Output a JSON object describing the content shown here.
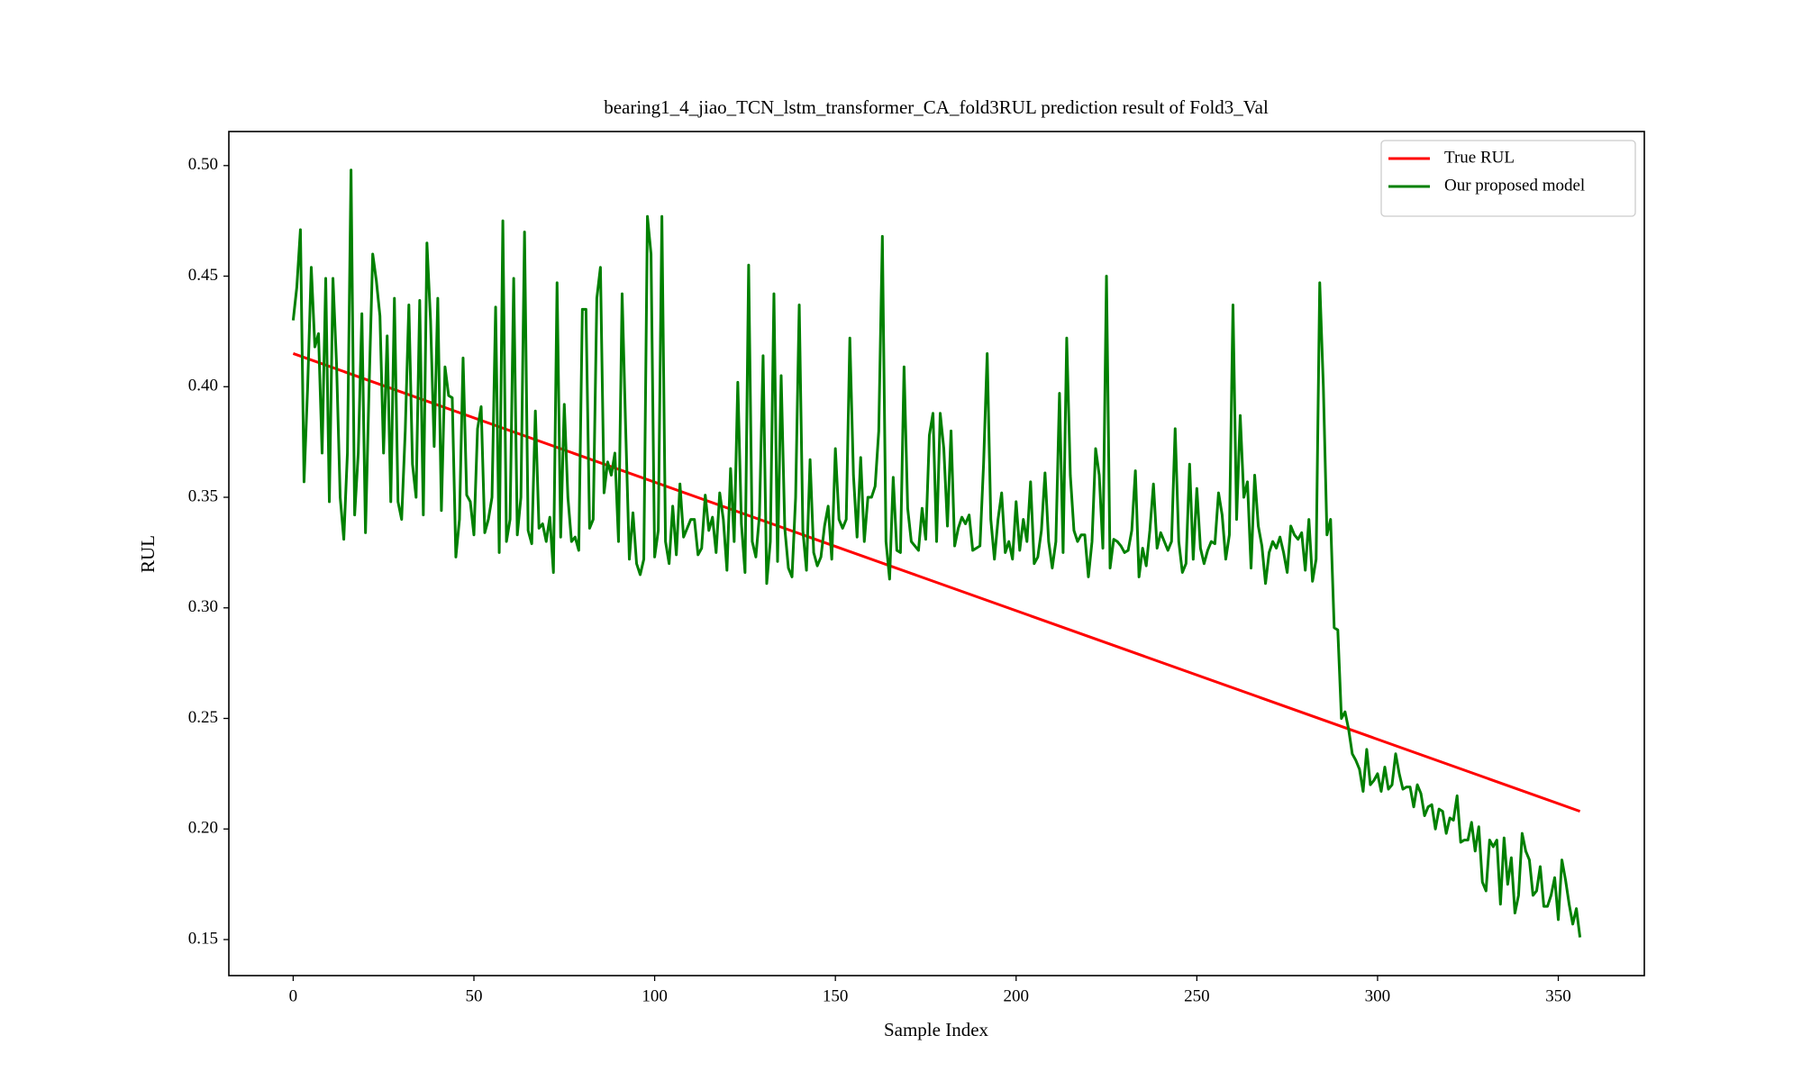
{
  "chart_data": {
    "type": "line",
    "title": "bearing1_4_jiao_TCN_lstm_transformer_CA_fold3RUL prediction result of Fold3_Val",
    "x_label": "Sample Index",
    "y_label": "RUL",
    "x": [
      0,
      1,
      2,
      3,
      4,
      5,
      6,
      7,
      8,
      9,
      10,
      11,
      12,
      13,
      14,
      15,
      16,
      17,
      18,
      19,
      20,
      21,
      22,
      23,
      24,
      25,
      26,
      27,
      28,
      29,
      30,
      31,
      32,
      33,
      34,
      35,
      36,
      37,
      38,
      39,
      40,
      41,
      42,
      43,
      44,
      45,
      46,
      47,
      48,
      49,
      50,
      51,
      52,
      53,
      54,
      55,
      56,
      57,
      58,
      59,
      60,
      61,
      62,
      63,
      64,
      65,
      66,
      67,
      68,
      69,
      70,
      71,
      72,
      73,
      74,
      75,
      76,
      77,
      78,
      79,
      80,
      81,
      82,
      83,
      84,
      85,
      86,
      87,
      88,
      89,
      90,
      91,
      92,
      93,
      94,
      95,
      96,
      97,
      98,
      99,
      100,
      101,
      102,
      103,
      104,
      105,
      106,
      107,
      108,
      109,
      110,
      111,
      112,
      113,
      114,
      115,
      116,
      117,
      118,
      119,
      120,
      121,
      122,
      123,
      124,
      125,
      126,
      127,
      128,
      129,
      130,
      131,
      132,
      133,
      134,
      135,
      136,
      137,
      138,
      139,
      140,
      141,
      142,
      143,
      144,
      145,
      146,
      147,
      148,
      149,
      150,
      151,
      152,
      153,
      154,
      155,
      156,
      157,
      158,
      159,
      160,
      161,
      162,
      163,
      164,
      165,
      166,
      167,
      168,
      169,
      170,
      171,
      172,
      173,
      174,
      175,
      176,
      177,
      178,
      179,
      180,
      181,
      182,
      183,
      184,
      185,
      186,
      187,
      188,
      189,
      190,
      191,
      192,
      193,
      194,
      195,
      196,
      197,
      198,
      199,
      200,
      201,
      202,
      203,
      204,
      205,
      206,
      207,
      208,
      209,
      210,
      211,
      212,
      213,
      214,
      215,
      216,
      217,
      218,
      219,
      220,
      221,
      222,
      223,
      224,
      225,
      226,
      227,
      228,
      229,
      230,
      231,
      232,
      233,
      234,
      235,
      236,
      237,
      238,
      239,
      240,
      241,
      242,
      243,
      244,
      245,
      246,
      247,
      248,
      249,
      250,
      251,
      252,
      253,
      254,
      255,
      256,
      257,
      258,
      259,
      260,
      261,
      262,
      263,
      264,
      265,
      266,
      267,
      268,
      269,
      270,
      271,
      272,
      273,
      274,
      275,
      276,
      277,
      278,
      279,
      280,
      281,
      282,
      283,
      284,
      285,
      286,
      287,
      288,
      289,
      290,
      291,
      292,
      293,
      294,
      295,
      296,
      297,
      298,
      299,
      300,
      301,
      302,
      303,
      304,
      305,
      306,
      307,
      308,
      309,
      310,
      311,
      312,
      313,
      314,
      315,
      316,
      317,
      318,
      319,
      320,
      321,
      322,
      323,
      324,
      325,
      326,
      327,
      328,
      329,
      330,
      331,
      332,
      333,
      334,
      335,
      336,
      337,
      338,
      339,
      340,
      341,
      342,
      343,
      344,
      345,
      346,
      347,
      348,
      349,
      350,
      351,
      352,
      353,
      354,
      355,
      356
    ],
    "series": [
      {
        "name": "True RUL",
        "color": "#ff0000",
        "x": [
          0,
          356
        ],
        "values": [
          0.415,
          0.208
        ]
      },
      {
        "name": "Our proposed model",
        "color": "#008000",
        "values": [
          0.43,
          0.445,
          0.471,
          0.357,
          0.4,
          0.454,
          0.418,
          0.424,
          0.37,
          0.449,
          0.348,
          0.449,
          0.41,
          0.35,
          0.331,
          0.37,
          0.498,
          0.342,
          0.37,
          0.433,
          0.334,
          0.4,
          0.46,
          0.448,
          0.432,
          0.37,
          0.423,
          0.348,
          0.44,
          0.348,
          0.34,
          0.38,
          0.437,
          0.365,
          0.35,
          0.439,
          0.342,
          0.465,
          0.43,
          0.373,
          0.44,
          0.344,
          0.409,
          0.396,
          0.395,
          0.323,
          0.34,
          0.413,
          0.351,
          0.348,
          0.333,
          0.381,
          0.391,
          0.334,
          0.34,
          0.35,
          0.436,
          0.325,
          0.475,
          0.33,
          0.34,
          0.449,
          0.333,
          0.35,
          0.47,
          0.335,
          0.329,
          0.389,
          0.336,
          0.338,
          0.33,
          0.341,
          0.316,
          0.447,
          0.332,
          0.392,
          0.35,
          0.33,
          0.332,
          0.326,
          0.435,
          0.435,
          0.336,
          0.34,
          0.44,
          0.454,
          0.352,
          0.366,
          0.36,
          0.37,
          0.33,
          0.442,
          0.38,
          0.322,
          0.343,
          0.32,
          0.315,
          0.322,
          0.477,
          0.46,
          0.323,
          0.335,
          0.477,
          0.33,
          0.32,
          0.346,
          0.324,
          0.356,
          0.332,
          0.336,
          0.34,
          0.34,
          0.324,
          0.327,
          0.351,
          0.335,
          0.341,
          0.325,
          0.352,
          0.34,
          0.317,
          0.363,
          0.33,
          0.402,
          0.338,
          0.316,
          0.455,
          0.33,
          0.323,
          0.342,
          0.414,
          0.311,
          0.33,
          0.442,
          0.321,
          0.405,
          0.336,
          0.318,
          0.314,
          0.35,
          0.437,
          0.335,
          0.317,
          0.367,
          0.325,
          0.319,
          0.323,
          0.337,
          0.346,
          0.322,
          0.372,
          0.34,
          0.336,
          0.34,
          0.422,
          0.36,
          0.332,
          0.368,
          0.33,
          0.35,
          0.35,
          0.355,
          0.38,
          0.468,
          0.33,
          0.313,
          0.359,
          0.326,
          0.325,
          0.409,
          0.345,
          0.33,
          0.328,
          0.326,
          0.345,
          0.331,
          0.378,
          0.388,
          0.33,
          0.388,
          0.372,
          0.337,
          0.38,
          0.328,
          0.336,
          0.341,
          0.338,
          0.342,
          0.326,
          0.327,
          0.328,
          0.365,
          0.415,
          0.34,
          0.322,
          0.34,
          0.352,
          0.325,
          0.33,
          0.322,
          0.348,
          0.326,
          0.34,
          0.33,
          0.357,
          0.32,
          0.323,
          0.335,
          0.361,
          0.33,
          0.318,
          0.33,
          0.397,
          0.325,
          0.422,
          0.36,
          0.335,
          0.33,
          0.333,
          0.333,
          0.314,
          0.33,
          0.372,
          0.36,
          0.327,
          0.45,
          0.318,
          0.331,
          0.33,
          0.328,
          0.325,
          0.326,
          0.335,
          0.362,
          0.314,
          0.327,
          0.319,
          0.335,
          0.356,
          0.327,
          0.334,
          0.33,
          0.326,
          0.33,
          0.381,
          0.33,
          0.316,
          0.32,
          0.365,
          0.322,
          0.354,
          0.327,
          0.32,
          0.326,
          0.33,
          0.329,
          0.352,
          0.342,
          0.322,
          0.333,
          0.437,
          0.34,
          0.387,
          0.35,
          0.357,
          0.318,
          0.36,
          0.337,
          0.328,
          0.311,
          0.325,
          0.33,
          0.327,
          0.332,
          0.325,
          0.316,
          0.337,
          0.333,
          0.331,
          0.334,
          0.317,
          0.34,
          0.312,
          0.322,
          0.447,
          0.4,
          0.333,
          0.34,
          0.291,
          0.29,
          0.25,
          0.253,
          0.245,
          0.234,
          0.231,
          0.227,
          0.217,
          0.236,
          0.22,
          0.222,
          0.225,
          0.217,
          0.228,
          0.218,
          0.22,
          0.234,
          0.225,
          0.218,
          0.219,
          0.219,
          0.21,
          0.22,
          0.216,
          0.206,
          0.21,
          0.211,
          0.2,
          0.209,
          0.208,
          0.198,
          0.205,
          0.204,
          0.215,
          0.194,
          0.195,
          0.195,
          0.203,
          0.19,
          0.201,
          0.176,
          0.172,
          0.195,
          0.192,
          0.195,
          0.166,
          0.196,
          0.175,
          0.187,
          0.162,
          0.17,
          0.198,
          0.19,
          0.186,
          0.17,
          0.172,
          0.183,
          0.165,
          0.165,
          0.17,
          0.178,
          0.159,
          0.186,
          0.177,
          0.166,
          0.157,
          0.164,
          0.151
        ]
      }
    ],
    "xlim": [
      -17.8,
      373.8
    ],
    "ylim": [
      0.1337,
      0.5154
    ],
    "xticks": [
      0,
      50,
      100,
      150,
      200,
      250,
      300,
      350
    ],
    "yticks": [
      0.15,
      {
        "value": 0.2,
        "label": "0.20"
      },
      0.25,
      {
        "value": 0.3,
        "label": "0.30"
      },
      0.35,
      {
        "value": 0.4,
        "label": "0.40"
      },
      0.45,
      {
        "value": 0.5,
        "label": "0.50"
      }
    ],
    "legend": "upper right"
  }
}
